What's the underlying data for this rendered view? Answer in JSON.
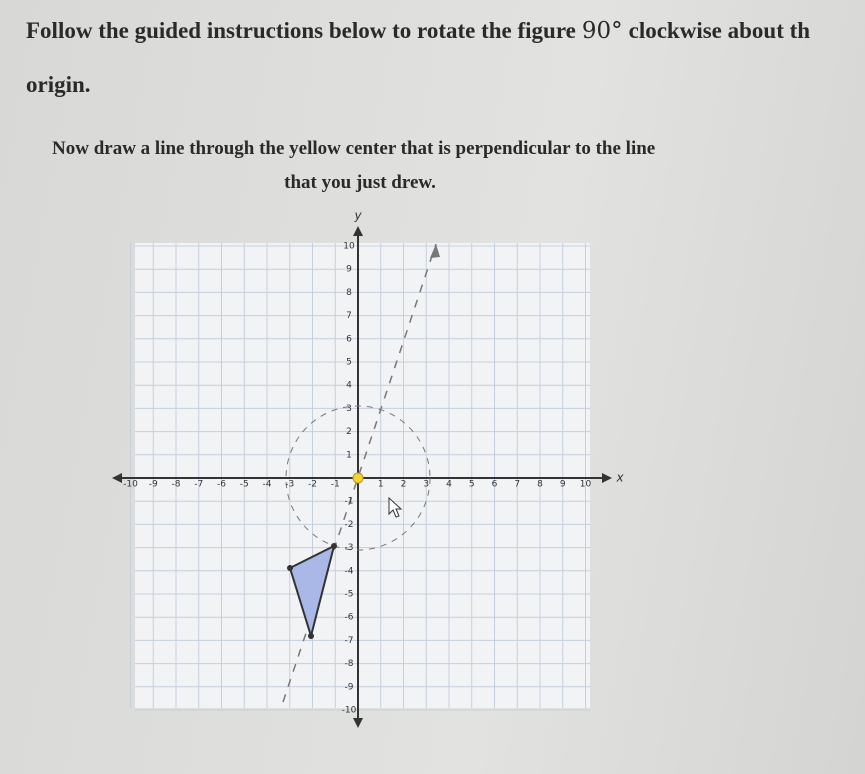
{
  "instructions": {
    "text_before": "Follow the guided instructions below to rotate the figure",
    "angle": "90°",
    "text_after": "clockwise about th",
    "text_line2": "origin."
  },
  "prompt": {
    "line1": "Now draw a line through the yellow center that is perpendicular to the line",
    "line2": "that you just drew."
  },
  "graph": {
    "x_axis_label": "x",
    "y_axis_label": "y",
    "x_ticks": [
      -10,
      -9,
      -8,
      -7,
      -6,
      -5,
      -4,
      -3,
      -2,
      -1,
      1,
      2,
      3,
      4,
      5,
      6,
      7,
      8,
      9,
      10
    ],
    "y_ticks": [
      10,
      9,
      8,
      7,
      6,
      5,
      4,
      3,
      2,
      1,
      -1,
      -2,
      -3,
      -4,
      -5,
      -6,
      -7,
      -8,
      -9,
      -10
    ]
  }
}
